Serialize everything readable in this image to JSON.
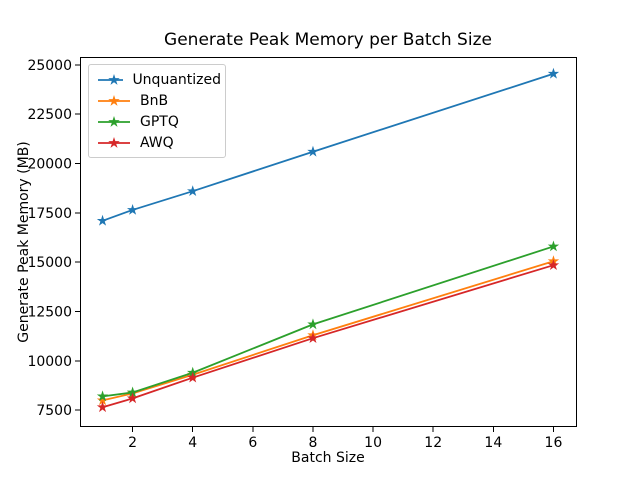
{
  "figure": {
    "background": "#ffffff"
  },
  "chart_data": {
    "type": "line",
    "title": "Generate Peak Memory per Batch Size",
    "xlabel": "Batch Size",
    "ylabel": "Generate Peak Memory (MB)",
    "x": [
      1,
      2,
      4,
      8,
      16
    ],
    "series": [
      {
        "name": "Unquantized",
        "color": "#1f77b4",
        "values": [
          17100,
          17650,
          18600,
          20600,
          24550
        ]
      },
      {
        "name": "BnB",
        "color": "#ff7f0e",
        "values": [
          8000,
          8350,
          9300,
          11300,
          15050
        ]
      },
      {
        "name": "GPTQ",
        "color": "#2ca02c",
        "values": [
          8200,
          8400,
          9400,
          11850,
          15800
        ]
      },
      {
        "name": "AWQ",
        "color": "#d62728",
        "values": [
          7650,
          8100,
          9150,
          11150,
          14850
        ]
      }
    ],
    "marker": "star",
    "line_width": 1.8,
    "xticks": [
      2,
      4,
      6,
      8,
      10,
      12,
      14,
      16
    ],
    "yticks": [
      7500,
      10000,
      12500,
      15000,
      17500,
      20000,
      22500,
      25000
    ],
    "xlim": [
      0.25,
      16.75
    ],
    "ylim": [
      6650,
      25350
    ],
    "grid": false,
    "legend": {
      "position": "upper-left",
      "entries": [
        "Unquantized",
        "BnB",
        "GPTQ",
        "AWQ"
      ]
    },
    "axes_color": "#000000"
  }
}
